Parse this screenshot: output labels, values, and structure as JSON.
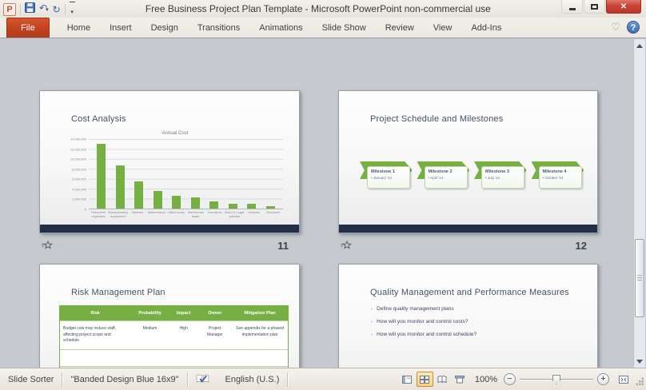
{
  "window": {
    "title": "Free Business Project Plan Template  -  Microsoft PowerPoint non-commercial use"
  },
  "quick_access": {
    "icons": [
      "powerpoint-app",
      "save",
      "undo",
      "redo",
      "customize-quick-access-toolbar"
    ]
  },
  "ribbon": {
    "tabs": [
      {
        "label": "File",
        "file": true
      },
      {
        "label": "Home"
      },
      {
        "label": "Insert"
      },
      {
        "label": "Design"
      },
      {
        "label": "Transitions"
      },
      {
        "label": "Animations"
      },
      {
        "label": "Slide Show"
      },
      {
        "label": "Review"
      },
      {
        "label": "View"
      },
      {
        "label": "Add-Ins"
      }
    ],
    "heart_icon": "♡",
    "help_label": "?"
  },
  "slides": [
    {
      "number": "11",
      "title": "Cost Analysis",
      "has_transition": true
    },
    {
      "number": "12",
      "title": "Project Schedule and Milestones",
      "has_transition": true,
      "milestones": [
        {
          "name": "Milestone 1",
          "date": "January '14"
        },
        {
          "name": "Milestone 2",
          "date": "April '14"
        },
        {
          "name": "Milestone 3",
          "date": "July '14"
        },
        {
          "name": "Milestone 4",
          "date": "October '14"
        }
      ]
    },
    {
      "title": "Risk Management Plan",
      "table": {
        "columns": [
          "Risk",
          "Probability",
          "Impact",
          "Owner",
          "Mitigation Plan"
        ],
        "rows": [
          {
            "cells": [
              "Budget cuts may reduce staff, affecting project scope and schedule",
              "Medium",
              "High",
              "Project Manager",
              "See appendix for a phased implementation plan"
            ],
            "tint": false
          },
          {
            "cells": [
              "",
              "",
              "",
              "",
              ""
            ],
            "tint": false
          },
          {
            "cells": [
              "",
              "",
              "",
              "",
              ""
            ],
            "tint": true
          }
        ]
      }
    },
    {
      "title": "Quality Management and Performance Measures",
      "bullets": [
        "Define quality management plans",
        "How will you monitor and control costs?",
        "How will you monitor and control schedule?"
      ]
    }
  ],
  "chart_data": {
    "type": "bar",
    "title": "Annual Cost",
    "categories": [
      "Personnel expenses",
      "Manufacturing equipment",
      "Salaries",
      "Maintenance",
      "Office lease",
      "Warehouse lease",
      "Insurance",
      "Bond & Legal policies",
      "Vehicles",
      "Research"
    ],
    "values": [
      13100000,
      8700000,
      5500000,
      3600000,
      2600000,
      2200000,
      1500000,
      1000000,
      1000000,
      500000
    ],
    "y_tick_labels": [
      "14,000,000",
      "12,000,000",
      "10,000,000",
      "8,000,000",
      "6,000,000",
      "4,000,000",
      "2,000,000",
      "0"
    ],
    "ylim": [
      0,
      14000000
    ],
    "bar_color": "#76b043",
    "grid": "horizontal",
    "legend": "none"
  },
  "status_bar": {
    "view_label": "Slide Sorter",
    "theme_label": "\"Banded Design Blue 16x9\"",
    "language_label": "English (U.S.)",
    "zoom_level": "100%"
  },
  "colors": {
    "accent_green": "#76b043",
    "navy_band": "#242e49",
    "file_tab_orange": "#c1431f",
    "workspace_bg": "#c6cacf"
  }
}
